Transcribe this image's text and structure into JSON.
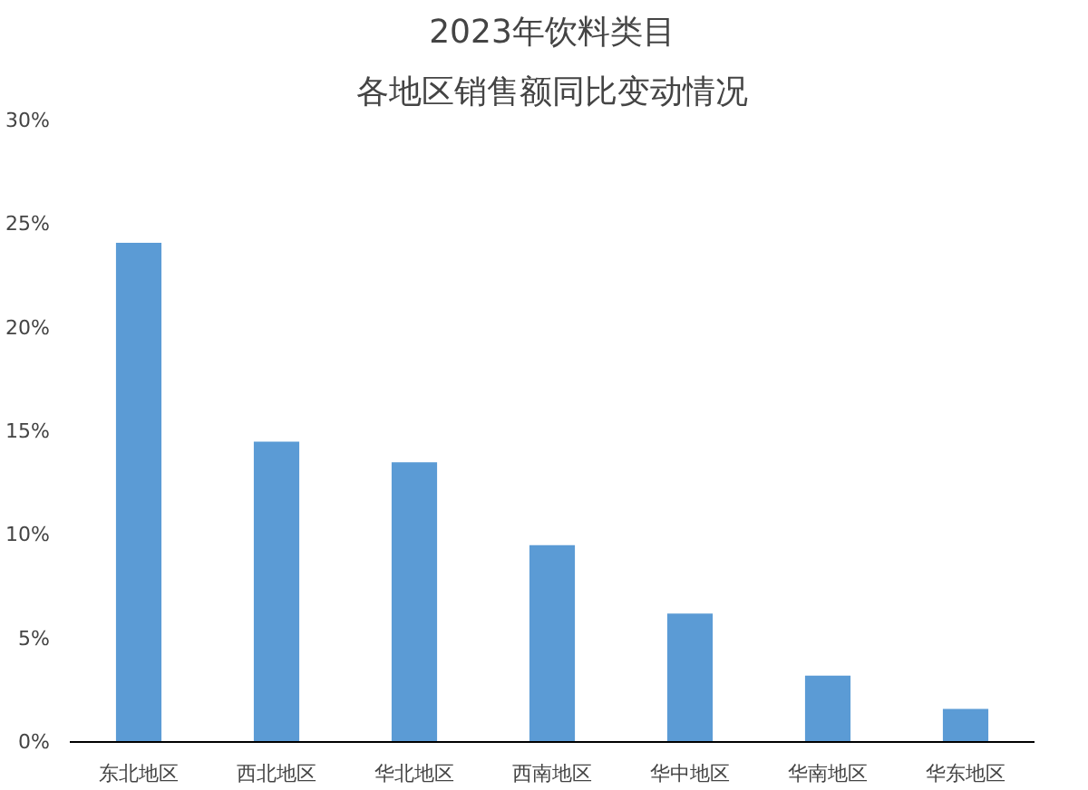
{
  "chart_data": {
    "type": "bar",
    "title": "2023年饮料类目",
    "subtitle": "各地区销售额同比变动情况",
    "categories": [
      "东北地区",
      "西北地区",
      "华北地区",
      "西南地区",
      "华中地区",
      "华南地区",
      "华东地区"
    ],
    "values": [
      24.1,
      14.5,
      13.5,
      9.5,
      6.2,
      3.2,
      1.6
    ],
    "color": "#5b9bd5",
    "ylim": [
      0,
      30
    ],
    "yticks": [
      {
        "value": 0,
        "label": "0%"
      },
      {
        "value": 5,
        "label": "5%"
      },
      {
        "value": 10,
        "label": "10%"
      },
      {
        "value": 15,
        "label": "15%"
      },
      {
        "value": 20,
        "label": "20%"
      },
      {
        "value": 25,
        "label": "25%"
      },
      {
        "value": 30,
        "label": "30%"
      }
    ],
    "grid": false
  }
}
